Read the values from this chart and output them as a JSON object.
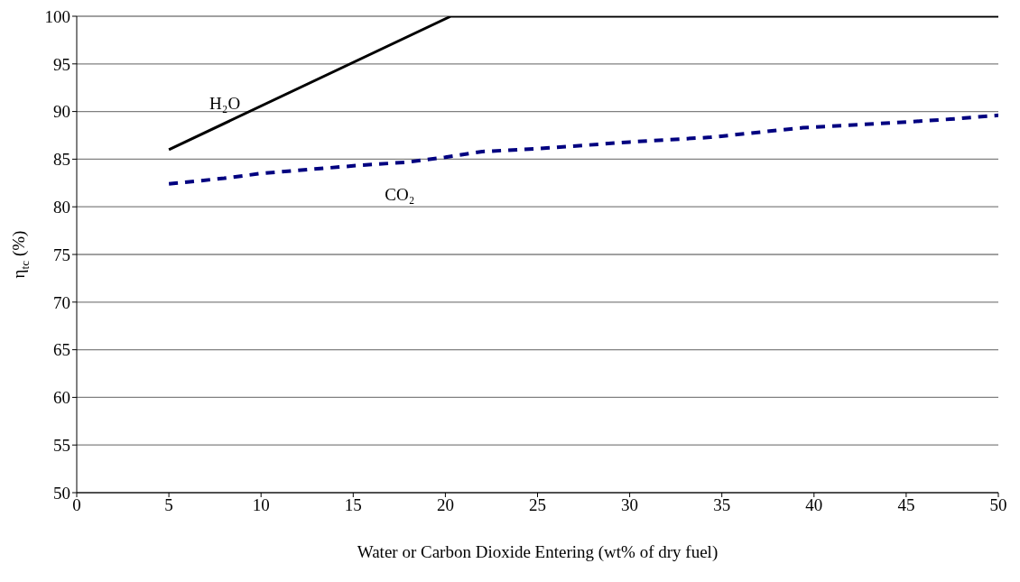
{
  "chart_data": {
    "type": "line",
    "xlabel": "Water or Carbon Dioxide Entering (wt% of dry fuel)",
    "ylabel": "η$_{tc}$ (%)",
    "xlim": [
      0,
      50
    ],
    "xticks": [
      0,
      5,
      10,
      15,
      20,
      25,
      30,
      35,
      40,
      45,
      50
    ],
    "ylim": [
      50,
      100
    ],
    "yticks": [
      50,
      55,
      60,
      65,
      70,
      75,
      80,
      85,
      90,
      95,
      100
    ],
    "grid": "y",
    "marker": "none",
    "series": [
      {
        "name": "H₂O",
        "color": "#000000",
        "line_style": "solid",
        "x": [
          5,
          20.3,
          50
        ],
        "values": [
          86,
          100,
          100
        ]
      },
      {
        "name": "CO₂",
        "color": "#000080",
        "line_style": "dashed",
        "x": [
          5,
          8,
          10,
          15,
          18,
          20,
          22,
          25,
          30,
          34.4,
          39.4,
          45,
          47.4,
          50
        ],
        "values": [
          82.4,
          83,
          83.5,
          84.3,
          84.7,
          85.2,
          85.8,
          86.1,
          86.8,
          87.3,
          88.3,
          88.9,
          89.2,
          89.6
        ]
      }
    ]
  }
}
